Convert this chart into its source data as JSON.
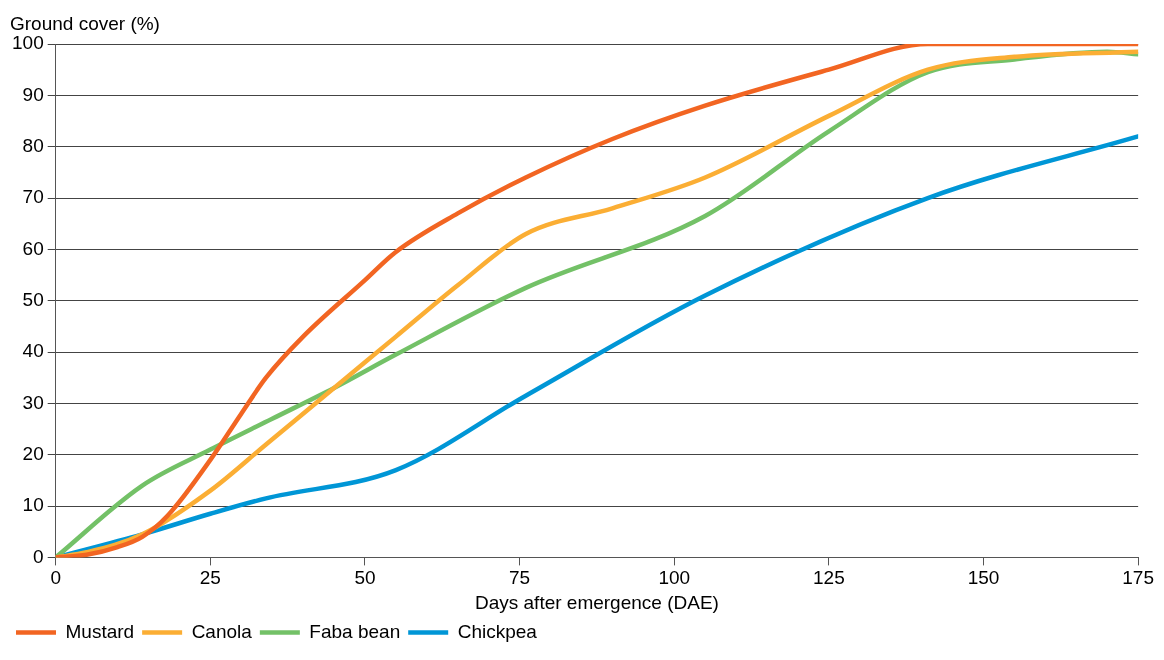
{
  "chart_data": {
    "type": "line",
    "ylabel": "Ground cover (%)",
    "xlabel": "Days after emergence (DAE)",
    "xlim": [
      0,
      175
    ],
    "xticks": [
      0,
      25,
      50,
      75,
      100,
      125,
      150,
      175
    ],
    "ylim": [
      0,
      100
    ],
    "yticks": [
      0,
      10,
      20,
      30,
      40,
      50,
      60,
      70,
      80,
      90,
      100
    ],
    "grid": "y",
    "legend": "bottom left",
    "marker": "none",
    "line_style": "solid",
    "series": [
      {
        "name": "Mustard",
        "color": "#f26522",
        "x": [
          0,
          5,
          10,
          14,
          18,
          25,
          30,
          34,
          40,
          50,
          55,
          65,
          76,
          90,
          105,
          125,
          141,
          175
        ],
        "values": [
          0,
          0.5,
          2,
          4,
          8,
          19,
          28,
          35,
          43,
          54,
          59.5,
          67,
          74,
          81.5,
          88,
          95,
          100,
          100
        ]
      },
      {
        "name": "Canola",
        "color": "#fbae34",
        "x": [
          0,
          5,
          14,
          25,
          34,
          45,
          55,
          65,
          76,
          90,
          105,
          125,
          141,
          155,
          175
        ],
        "values": [
          0,
          1,
          4.5,
          13,
          22,
          33,
          43,
          53,
          63,
          68,
          74,
          86,
          95,
          97.5,
          98.5
        ]
      },
      {
        "name": "Faba bean",
        "color": "#73c167",
        "x": [
          0,
          14,
          25,
          35,
          45,
          55,
          76,
          105,
          125,
          141,
          155,
          170,
          175
        ],
        "values": [
          0,
          14,
          21,
          27,
          33,
          39.5,
          52.5,
          66.5,
          83,
          94.5,
          97,
          98.5,
          98
        ]
      },
      {
        "name": "Chickpea",
        "color": "#0096d6",
        "x": [
          0,
          14,
          25,
          34,
          55,
          76,
          105,
          141,
          175
        ],
        "values": [
          0,
          4.5,
          8.5,
          11.5,
          17,
          31.5,
          51,
          70,
          82
        ]
      }
    ]
  }
}
